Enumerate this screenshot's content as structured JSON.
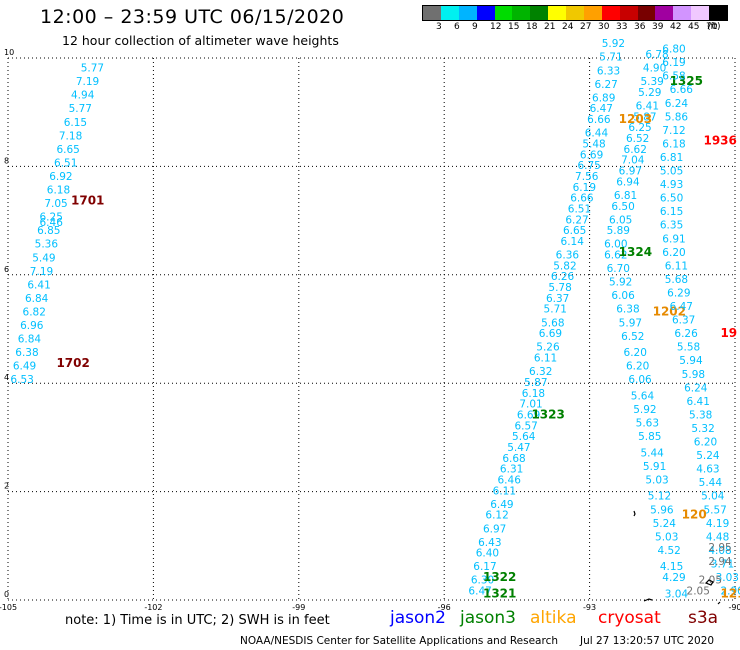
{
  "header": {
    "title": "12:00 – 23:59 UTC 06/15/2020",
    "subtitle": "12 hour collection of altimeter wave heights"
  },
  "colorbar": {
    "colors": [
      "#707070",
      "#00f0f0",
      "#00b4ff",
      "#0000ff",
      "#00dc00",
      "#00b400",
      "#008200",
      "#ffff00",
      "#f0c800",
      "#ffa000",
      "#ff0000",
      "#c80000",
      "#780000",
      "#a000a0",
      "#d294ff",
      "#f0c8ff",
      "#000000"
    ],
    "ticks": [
      "3",
      "6",
      "9",
      "12",
      "15",
      "18",
      "21",
      "24",
      "27",
      "30",
      "33",
      "36",
      "39",
      "42",
      "45",
      "70"
    ],
    "unit": "(ft)"
  },
  "axes": {
    "x_ticks": [
      {
        "v": -105,
        "label": "-105"
      },
      {
        "v": -102,
        "label": "-102"
      },
      {
        "v": -99,
        "label": "-99"
      },
      {
        "v": -96,
        "label": "-96"
      },
      {
        "v": -93,
        "label": "-93"
      },
      {
        "v": -90,
        "label": "-90"
      }
    ],
    "y_ticks": [
      {
        "v": 0,
        "label": "0"
      },
      {
        "v": 2,
        "label": "2"
      },
      {
        "v": 4,
        "label": "4"
      },
      {
        "v": 6,
        "label": "6"
      },
      {
        "v": 8,
        "label": "8"
      },
      {
        "v": 10,
        "label": "10"
      }
    ],
    "xlim": [
      -105,
      -90
    ],
    "ylim": [
      0,
      10
    ]
  },
  "tracks": [
    {
      "name": "track-west",
      "color": "#00bfff",
      "labels": [
        {
          "t": "1701",
          "lon": -103.7,
          "lat": 7.3,
          "color": "#800000"
        },
        {
          "t": "1702",
          "lon": -104.0,
          "lat": 4.3,
          "color": "#800000"
        }
      ],
      "points": [
        {
          "lon": -103.5,
          "lat": 9.75,
          "v": "5.77"
        },
        {
          "lon": -103.6,
          "lat": 9.5,
          "v": "7.19"
        },
        {
          "lon": -103.7,
          "lat": 9.25,
          "v": "4.94"
        },
        {
          "lon": -103.75,
          "lat": 9.0,
          "v": "5.77"
        },
        {
          "lon": -103.85,
          "lat": 8.75,
          "v": "6.15"
        },
        {
          "lon": -103.95,
          "lat": 8.5,
          "v": "7.18"
        },
        {
          "lon": -104.0,
          "lat": 8.25,
          "v": "6.65"
        },
        {
          "lon": -104.05,
          "lat": 8.0,
          "v": "6.51"
        },
        {
          "lon": -104.15,
          "lat": 7.75,
          "v": "6.92"
        },
        {
          "lon": -104.2,
          "lat": 7.5,
          "v": "6.18"
        },
        {
          "lon": -104.25,
          "lat": 7.25,
          "v": "7.05"
        },
        {
          "lon": -104.35,
          "lat": 7.0,
          "v": "6.25"
        },
        {
          "lon": -104.35,
          "lat": 6.9,
          "v": "6.46"
        },
        {
          "lon": -104.4,
          "lat": 6.75,
          "v": "6.85"
        },
        {
          "lon": -104.45,
          "lat": 6.5,
          "v": "5.36"
        },
        {
          "lon": -104.5,
          "lat": 6.25,
          "v": "5.49"
        },
        {
          "lon": -104.55,
          "lat": 6.0,
          "v": "7.19"
        },
        {
          "lon": -104.6,
          "lat": 5.75,
          "v": "6.41"
        },
        {
          "lon": -104.65,
          "lat": 5.5,
          "v": "6.84"
        },
        {
          "lon": -104.7,
          "lat": 5.25,
          "v": "6.82"
        },
        {
          "lon": -104.75,
          "lat": 5.0,
          "v": "6.96"
        },
        {
          "lon": -104.8,
          "lat": 4.75,
          "v": "6.84"
        },
        {
          "lon": -104.85,
          "lat": 4.5,
          "v": "6.38"
        },
        {
          "lon": -104.9,
          "lat": 4.25,
          "v": "6.49"
        },
        {
          "lon": -104.95,
          "lat": 4.0,
          "v": "6.53"
        }
      ]
    },
    {
      "name": "track-center-west",
      "color": "#00bfff",
      "labels": [
        {
          "t": "1323",
          "lon": -94.2,
          "lat": 3.35,
          "color": "#008000"
        },
        {
          "t": "1322",
          "lon": -95.2,
          "lat": 0.35,
          "color": "#008000"
        },
        {
          "t": "1321",
          "lon": -95.2,
          "lat": 0.05,
          "color": "#008000"
        }
      ],
      "points": [
        {
          "lon": -95.5,
          "lat": 0.1,
          "v": "6.47"
        },
        {
          "lon": -95.45,
          "lat": 0.3,
          "v": "6.30"
        },
        {
          "lon": -95.4,
          "lat": 0.55,
          "v": "6.17"
        },
        {
          "lon": -95.35,
          "lat": 0.8,
          "v": "6.40"
        },
        {
          "lon": -95.3,
          "lat": 1.0,
          "v": "6.43"
        },
        {
          "lon": -95.2,
          "lat": 1.25,
          "v": "6.97"
        },
        {
          "lon": -95.15,
          "lat": 1.5,
          "v": "6.12"
        },
        {
          "lon": -95.05,
          "lat": 1.7,
          "v": "6.49"
        },
        {
          "lon": -95.0,
          "lat": 1.95,
          "v": "6.11"
        },
        {
          "lon": -94.9,
          "lat": 2.15,
          "v": "6.46"
        },
        {
          "lon": -94.85,
          "lat": 2.35,
          "v": "6.31"
        },
        {
          "lon": -94.8,
          "lat": 2.55,
          "v": "6.68"
        },
        {
          "lon": -94.7,
          "lat": 2.75,
          "v": "5.47"
        },
        {
          "lon": -94.6,
          "lat": 2.95,
          "v": "5.64"
        },
        {
          "lon": -94.55,
          "lat": 3.15,
          "v": "6.57"
        },
        {
          "lon": -94.5,
          "lat": 3.35,
          "v": "6.69"
        },
        {
          "lon": -94.45,
          "lat": 3.55,
          "v": "7.01"
        },
        {
          "lon": -94.4,
          "lat": 3.75,
          "v": "6.18"
        },
        {
          "lon": -94.35,
          "lat": 3.95,
          "v": "5.87"
        },
        {
          "lon": -94.25,
          "lat": 4.15,
          "v": "6.32"
        },
        {
          "lon": -94.15,
          "lat": 4.4,
          "v": "6.11"
        },
        {
          "lon": -94.1,
          "lat": 4.6,
          "v": "5.26"
        },
        {
          "lon": -94.05,
          "lat": 4.85,
          "v": "6.69"
        },
        {
          "lon": -94.0,
          "lat": 5.05,
          "v": "5.68"
        },
        {
          "lon": -93.95,
          "lat": 5.3,
          "v": "5.71"
        },
        {
          "lon": -93.9,
          "lat": 5.5,
          "v": "6.37"
        },
        {
          "lon": -93.85,
          "lat": 5.7,
          "v": "5.78"
        },
        {
          "lon": -93.8,
          "lat": 5.9,
          "v": "6.26"
        },
        {
          "lon": -93.75,
          "lat": 6.1,
          "v": "5.82"
        },
        {
          "lon": -93.7,
          "lat": 6.3,
          "v": "6.36"
        },
        {
          "lon": -93.6,
          "lat": 6.55,
          "v": "6.14"
        },
        {
          "lon": -93.55,
          "lat": 6.75,
          "v": "6.65"
        },
        {
          "lon": -93.5,
          "lat": 6.95,
          "v": "6.27"
        },
        {
          "lon": -93.45,
          "lat": 7.15,
          "v": "6.51"
        },
        {
          "lon": -93.4,
          "lat": 7.35,
          "v": "6.66"
        },
        {
          "lon": -93.35,
          "lat": 7.55,
          "v": "6.19"
        },
        {
          "lon": -93.3,
          "lat": 7.75,
          "v": "7.56"
        },
        {
          "lon": -93.25,
          "lat": 7.95,
          "v": "6.75"
        },
        {
          "lon": -93.2,
          "lat": 8.15,
          "v": "6.69"
        },
        {
          "lon": -93.15,
          "lat": 8.35,
          "v": "5.48"
        },
        {
          "lon": -93.1,
          "lat": 8.55,
          "v": "6.44"
        },
        {
          "lon": -93.05,
          "lat": 8.8,
          "v": "6.66"
        },
        {
          "lon": -93.0,
          "lat": 9.0,
          "v": "6.47"
        },
        {
          "lon": -92.95,
          "lat": 9.2,
          "v": "6.89"
        },
        {
          "lon": -92.9,
          "lat": 9.45,
          "v": "6.27"
        },
        {
          "lon": -92.85,
          "lat": 9.7,
          "v": "6.33"
        },
        {
          "lon": -92.8,
          "lat": 9.95,
          "v": "5.71"
        },
        {
          "lon": -92.75,
          "lat": 10.2,
          "v": "5.92"
        }
      ]
    },
    {
      "name": "track-center-east",
      "color": "#00bfff",
      "labels": [
        {
          "t": "1325",
          "lon": -91.35,
          "lat": 9.5,
          "color": "#008000"
        },
        {
          "t": "1203",
          "lon": -92.4,
          "lat": 8.8,
          "color": "#e68a00"
        },
        {
          "t": "1324",
          "lon": -92.4,
          "lat": 6.35,
          "color": "#008000"
        },
        {
          "t": "1202",
          "lon": -91.7,
          "lat": 5.25,
          "color": "#e68a00"
        }
      ],
      "points": [
        {
          "lon": -91.85,
          "lat": 10.0,
          "v": "6.78"
        },
        {
          "lon": -91.9,
          "lat": 9.75,
          "v": "4.90"
        },
        {
          "lon": -91.95,
          "lat": 9.5,
          "v": "5.39"
        },
        {
          "lon": -92.0,
          "lat": 9.3,
          "v": "5.29"
        },
        {
          "lon": -92.05,
          "lat": 9.05,
          "v": "6.41"
        },
        {
          "lon": -92.1,
          "lat": 8.85,
          "v": "5.87"
        },
        {
          "lon": -92.2,
          "lat": 8.65,
          "v": "6.25"
        },
        {
          "lon": -92.25,
          "lat": 8.45,
          "v": "6.52"
        },
        {
          "lon": -92.3,
          "lat": 8.25,
          "v": "6.62"
        },
        {
          "lon": -92.35,
          "lat": 8.05,
          "v": "7.04"
        },
        {
          "lon": -92.4,
          "lat": 7.85,
          "v": "6.97"
        },
        {
          "lon": -92.45,
          "lat": 7.65,
          "v": "6.94"
        },
        {
          "lon": -92.5,
          "lat": 7.4,
          "v": "6.81"
        },
        {
          "lon": -92.55,
          "lat": 7.2,
          "v": "6.50"
        },
        {
          "lon": -92.6,
          "lat": 6.95,
          "v": "6.05"
        },
        {
          "lon": -92.65,
          "lat": 6.75,
          "v": "5.89"
        },
        {
          "lon": -92.7,
          "lat": 6.5,
          "v": "6.00"
        },
        {
          "lon": -92.7,
          "lat": 6.3,
          "v": "6.62"
        },
        {
          "lon": -92.65,
          "lat": 6.05,
          "v": "6.70"
        },
        {
          "lon": -92.6,
          "lat": 5.8,
          "v": "5.92"
        },
        {
          "lon": -92.55,
          "lat": 5.55,
          "v": "6.06"
        },
        {
          "lon": -92.45,
          "lat": 5.3,
          "v": "6.38"
        },
        {
          "lon": -92.4,
          "lat": 5.05,
          "v": "5.97"
        },
        {
          "lon": -92.35,
          "lat": 4.8,
          "v": "6.52"
        },
        {
          "lon": -92.3,
          "lat": 4.5,
          "v": "6.20"
        },
        {
          "lon": -92.25,
          "lat": 4.25,
          "v": "6.20"
        },
        {
          "lon": -92.2,
          "lat": 4.0,
          "v": "6.06"
        },
        {
          "lon": -92.15,
          "lat": 3.7,
          "v": "5.64"
        },
        {
          "lon": -92.1,
          "lat": 3.45,
          "v": "5.92"
        },
        {
          "lon": -92.05,
          "lat": 3.2,
          "v": "5.63"
        },
        {
          "lon": -92.0,
          "lat": 2.95,
          "v": "5.85"
        },
        {
          "lon": -91.95,
          "lat": 2.65,
          "v": "5.44"
        },
        {
          "lon": -91.9,
          "lat": 2.4,
          "v": "5.91"
        },
        {
          "lon": -91.85,
          "lat": 2.15,
          "v": "5.03"
        },
        {
          "lon": -91.8,
          "lat": 1.85,
          "v": "5.12"
        },
        {
          "lon": -91.75,
          "lat": 1.6,
          "v": "5.96"
        },
        {
          "lon": -91.7,
          "lat": 1.35,
          "v": "5.24"
        },
        {
          "lon": -91.65,
          "lat": 1.1,
          "v": "5.03"
        },
        {
          "lon": -91.6,
          "lat": 0.85,
          "v": "4.52"
        },
        {
          "lon": -91.55,
          "lat": 0.55,
          "v": "4.15"
        },
        {
          "lon": -91.5,
          "lat": 0.35,
          "v": "4.29"
        },
        {
          "lon": -91.45,
          "lat": 0.05,
          "v": "3.04"
        }
      ]
    },
    {
      "name": "track-east",
      "color": "#00bfff",
      "labels": [
        {
          "t": "1936",
          "lon": -90.65,
          "lat": 8.4,
          "color": "#ff0000"
        },
        {
          "t": "19",
          "lon": -90.3,
          "lat": 4.85,
          "color": "#ff0000"
        },
        {
          "t": "120",
          "lon": -91.1,
          "lat": 1.5,
          "color": "#e68a00"
        },
        {
          "t": "121",
          "lon": -90.3,
          "lat": 0.05,
          "color": "#e68a00"
        }
      ],
      "points": [
        {
          "lon": -91.5,
          "lat": 10.1,
          "v": "6.80"
        },
        {
          "lon": -91.5,
          "lat": 9.85,
          "v": "6.19"
        },
        {
          "lon": -91.5,
          "lat": 9.6,
          "v": "6.58"
        },
        {
          "lon": -91.35,
          "lat": 9.35,
          "v": "6.66"
        },
        {
          "lon": -91.45,
          "lat": 9.1,
          "v": "6.24"
        },
        {
          "lon": -91.45,
          "lat": 8.85,
          "v": "5.86"
        },
        {
          "lon": -91.5,
          "lat": 8.6,
          "v": "7.12"
        },
        {
          "lon": -91.5,
          "lat": 8.35,
          "v": "6.18"
        },
        {
          "lon": -91.55,
          "lat": 8.1,
          "v": "6.81"
        },
        {
          "lon": -91.55,
          "lat": 7.85,
          "v": "5.05"
        },
        {
          "lon": -91.55,
          "lat": 7.6,
          "v": "4.93"
        },
        {
          "lon": -91.55,
          "lat": 7.35,
          "v": "6.50"
        },
        {
          "lon": -91.55,
          "lat": 7.1,
          "v": "6.15"
        },
        {
          "lon": -91.55,
          "lat": 6.85,
          "v": "6.35"
        },
        {
          "lon": -91.5,
          "lat": 6.6,
          "v": "6.91"
        },
        {
          "lon": -91.5,
          "lat": 6.35,
          "v": "6.20"
        },
        {
          "lon": -91.45,
          "lat": 6.1,
          "v": "6.11"
        },
        {
          "lon": -91.45,
          "lat": 5.85,
          "v": "5.68"
        },
        {
          "lon": -91.4,
          "lat": 5.6,
          "v": "6.29"
        },
        {
          "lon": -91.35,
          "lat": 5.35,
          "v": "6.47"
        },
        {
          "lon": -91.3,
          "lat": 5.1,
          "v": "6.37"
        },
        {
          "lon": -91.25,
          "lat": 4.85,
          "v": "6.26"
        },
        {
          "lon": -91.2,
          "lat": 4.6,
          "v": "5.58"
        },
        {
          "lon": -91.15,
          "lat": 4.35,
          "v": "5.94"
        },
        {
          "lon": -91.1,
          "lat": 4.1,
          "v": "5.98"
        },
        {
          "lon": -91.05,
          "lat": 3.85,
          "v": "6.24"
        },
        {
          "lon": -91.0,
          "lat": 3.6,
          "v": "6.41"
        },
        {
          "lon": -90.95,
          "lat": 3.35,
          "v": "5.38"
        },
        {
          "lon": -90.9,
          "lat": 3.1,
          "v": "5.32"
        },
        {
          "lon": -90.85,
          "lat": 2.85,
          "v": "6.20"
        },
        {
          "lon": -90.8,
          "lat": 2.6,
          "v": "5.24"
        },
        {
          "lon": -90.8,
          "lat": 2.35,
          "v": "4.63"
        },
        {
          "lon": -90.75,
          "lat": 2.1,
          "v": "5.44"
        },
        {
          "lon": -90.7,
          "lat": 1.85,
          "v": "5.04"
        },
        {
          "lon": -90.65,
          "lat": 1.6,
          "v": "5.57"
        },
        {
          "lon": -90.6,
          "lat": 1.35,
          "v": "4.19"
        },
        {
          "lon": -90.6,
          "lat": 1.1,
          "v": "4.48"
        },
        {
          "lon": -90.55,
          "lat": 0.85,
          "v": "4.08"
        },
        {
          "lon": -90.5,
          "lat": 0.6,
          "v": "3.71"
        },
        {
          "lon": -90.4,
          "lat": 0.35,
          "v": "3.03"
        },
        {
          "lon": -90.3,
          "lat": 0.1,
          "v": "2.90"
        }
      ]
    },
    {
      "name": "track-coastal",
      "color": "#707070",
      "labels": [],
      "points": [
        {
          "lon": -90.55,
          "lat": 0.9,
          "v": "2.95"
        },
        {
          "lon": -90.55,
          "lat": 0.65,
          "v": "2.94"
        },
        {
          "lon": -90.75,
          "lat": 0.3,
          "v": "2.05"
        },
        {
          "lon": -91.0,
          "lat": 0.1,
          "v": "2.05"
        }
      ]
    }
  ],
  "footer": {
    "note": "note: 1) Time is in UTC; 2) SWH is in feet",
    "legend": [
      {
        "label": "jason2",
        "color": "#0000ff"
      },
      {
        "label": "jason3",
        "color": "#008000"
      },
      {
        "label": "altika",
        "color": "#ffa500"
      },
      {
        "label": "cryosat",
        "color": "#ff0000"
      },
      {
        "label": "s3a",
        "color": "#800000"
      }
    ],
    "credit": "NOAA/NESDIS Center for Satellite Applications and Research",
    "timestamp": "Jul 27 13:20:57 UTC 2020"
  }
}
